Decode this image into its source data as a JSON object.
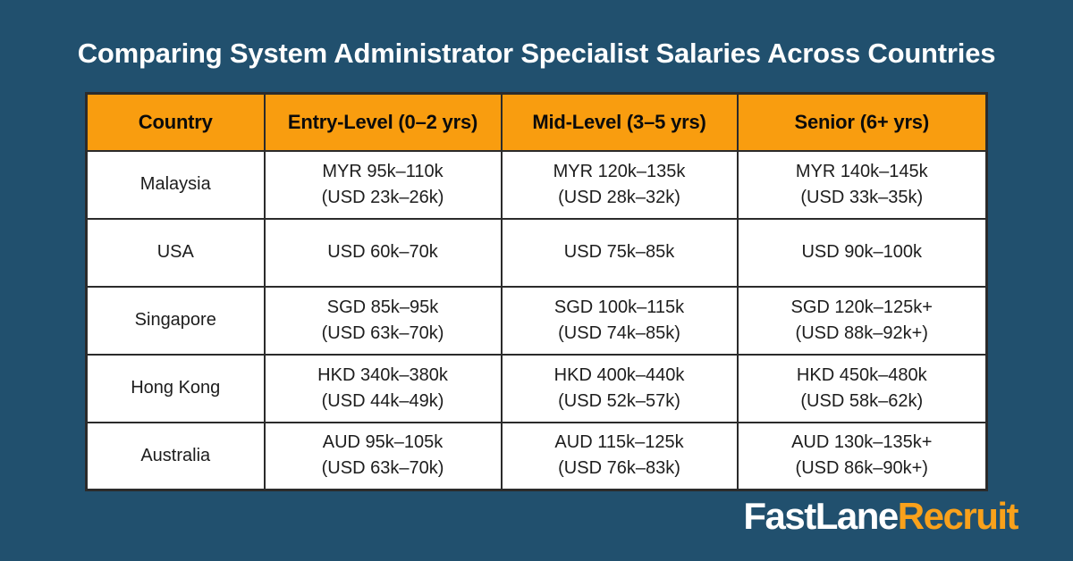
{
  "title": "Comparing System Administrator Specialist Salaries Across Countries",
  "logo": {
    "part1": "FastLane",
    "part2": "Recruit"
  },
  "colors": {
    "background": "#21506E",
    "header_bg": "#F99D0F",
    "cell_bg": "#FFFFFF",
    "border": "#2B2B2B",
    "title_text": "#FFFFFF",
    "header_text": "#0B0B0B",
    "cell_text": "#1D1D1D",
    "logo_primary": "#FFFFFF",
    "logo_accent": "#F9A11B"
  },
  "table": {
    "headers": [
      "Country",
      "Entry-Level (0–2 yrs)",
      "Mid-Level (3–5 yrs)",
      "Senior (6+ yrs)"
    ],
    "rows": [
      {
        "country": "Malaysia",
        "cells": [
          [
            "MYR 95k–110k",
            "(USD 23k–26k)"
          ],
          [
            "MYR 120k–135k",
            "(USD 28k–32k)"
          ],
          [
            "MYR 140k–145k",
            "(USD 33k–35k)"
          ]
        ]
      },
      {
        "country": "USA",
        "cells": [
          [
            "USD 60k–70k"
          ],
          [
            "USD 75k–85k"
          ],
          [
            "USD 90k–100k"
          ]
        ]
      },
      {
        "country": "Singapore",
        "cells": [
          [
            "SGD 85k–95k",
            "(USD 63k–70k)"
          ],
          [
            "SGD 100k–115k",
            "(USD 74k–85k)"
          ],
          [
            "SGD 120k–125k+",
            "(USD 88k–92k+)"
          ]
        ]
      },
      {
        "country": "Hong Kong",
        "cells": [
          [
            "HKD 340k–380k",
            "(USD 44k–49k)"
          ],
          [
            "HKD 400k–440k",
            "(USD 52k–57k)"
          ],
          [
            "HKD 450k–480k",
            "(USD 58k–62k)"
          ]
        ]
      },
      {
        "country": "Australia",
        "cells": [
          [
            "AUD 95k–105k",
            "(USD 63k–70k)"
          ],
          [
            "AUD 115k–125k",
            "(USD 76k–83k)"
          ],
          [
            "AUD 130k–135k+",
            "(USD 86k–90k+)"
          ]
        ]
      }
    ]
  },
  "chart_data": {
    "type": "table",
    "title": "Comparing System Administrator Specialist Salaries Across Countries",
    "columns": [
      "Country",
      "Entry-Level (0–2 yrs)",
      "Mid-Level (3–5 yrs)",
      "Senior (6+ yrs)"
    ],
    "rows": [
      [
        "Malaysia",
        "MYR 95k–110k (USD 23k–26k)",
        "MYR 120k–135k (USD 28k–32k)",
        "MYR 140k–145k (USD 33k–35k)"
      ],
      [
        "USA",
        "USD 60k–70k",
        "USD 75k–85k",
        "USD 90k–100k"
      ],
      [
        "Singapore",
        "SGD 85k–95k (USD 63k–70k)",
        "SGD 100k–115k (USD 74k–85k)",
        "SGD 120k–125k+ (USD 88k–92k+)"
      ],
      [
        "Hong Kong",
        "HKD 340k–380k (USD 44k–49k)",
        "HKD 400k–440k (USD 52k–57k)",
        "HKD 450k–480k (USD 58k–62k)"
      ],
      [
        "Australia",
        "AUD 95k–105k (USD 63k–70k)",
        "AUD 115k–125k (USD 76k–83k)",
        "AUD 130k–135k+ (USD 86k–90k+)"
      ]
    ]
  }
}
